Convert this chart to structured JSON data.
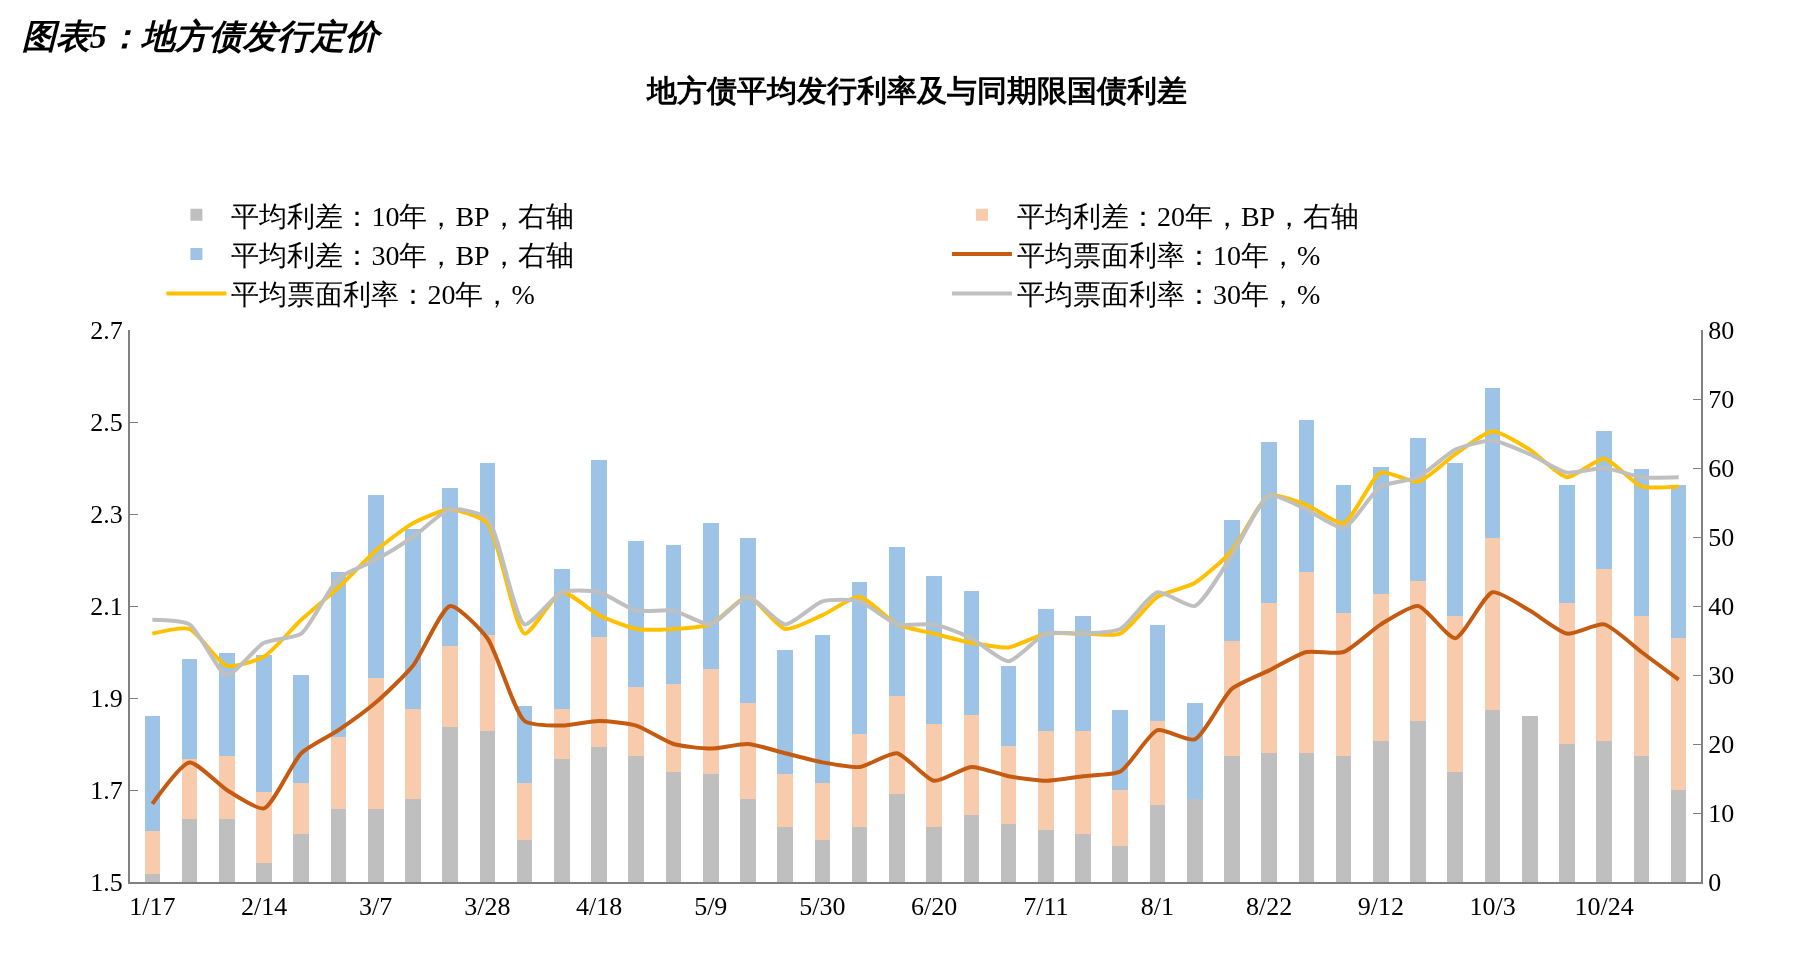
{
  "chart_data": {
    "type": "bar",
    "title": "图表5：地方债发行定价",
    "subtitle": "地方债平均发行利率及与同期限国债利差",
    "categories": [
      "1/17",
      null,
      null,
      "2/14",
      null,
      null,
      "3/7",
      null,
      null,
      "3/28",
      null,
      null,
      "4/18",
      null,
      null,
      "5/9",
      null,
      null,
      "5/30",
      null,
      null,
      "6/20",
      null,
      null,
      "7/11",
      null,
      null,
      "8/1",
      null,
      null,
      "8/22",
      null,
      null,
      "9/12",
      null,
      null,
      "10/3",
      null,
      null,
      "10/24",
      null,
      null
    ],
    "series": [
      {
        "name": "平均利差：10年，BP，右轴",
        "axis": "y2",
        "color": "#bfbfbf",
        "values": [
          1.1,
          9.2,
          9.2,
          2.8,
          7,
          10.6,
          10.6,
          12,
          22.4,
          21.9,
          6.1,
          17.8,
          19.6,
          18.3,
          16,
          15.6,
          12,
          8,
          6.1,
          8,
          12.8,
          8,
          9.7,
          8.4,
          7.5,
          7,
          5.2,
          11.1,
          12,
          18.3,
          18.7,
          18.7,
          18.3,
          20.5,
          23.3,
          16,
          25,
          24.1,
          20,
          20.5,
          18.3,
          13.3
        ]
      },
      {
        "name": "平均利差：20年，BP，右轴",
        "axis": "y2",
        "color": "#f8cbad",
        "values": [
          6.3,
          8.6,
          9.1,
          10.2,
          7.3,
          10.4,
          19,
          13.1,
          11.8,
          13.9,
          8.2,
          7.3,
          15.9,
          9.9,
          12.7,
          15.3,
          14,
          7.6,
          8.2,
          13.4,
          14.1,
          14.9,
          14.5,
          11.3,
          14.4,
          14.9,
          8.1,
          12.2,
          null,
          16.6,
          21.7,
          26.2,
          20.7,
          21.3,
          20.3,
          22.6,
          24.8,
          null,
          20.4,
          24.8,
          20.3,
          22.1
        ]
      },
      {
        "name": "平均利差：30年，BP，右轴",
        "axis": "y2",
        "color": "#9dc3e6",
        "values": [
          16.7,
          14.5,
          14.9,
          19.9,
          15.7,
          23.9,
          26.5,
          26,
          22.9,
          24.9,
          11.2,
          20.2,
          25.6,
          21.2,
          20.2,
          21.2,
          23.8,
          18,
          21.5,
          22.1,
          21.6,
          21.5,
          18,
          11.6,
          17.6,
          16.7,
          11.7,
          13.9,
          13.9,
          17.6,
          23.4,
          22.1,
          18.5,
          18.4,
          20.7,
          22.1,
          21.8,
          null,
          17.1,
          20,
          21.2,
          22.1
        ]
      },
      {
        "name": "平均票面利率：10年，%",
        "type": "line",
        "color": "#c55a11",
        "values": [
          1.67,
          1.76,
          1.7,
          1.66,
          1.78,
          1.83,
          1.89,
          1.97,
          2.1,
          2.03,
          1.85,
          1.84,
          1.85,
          1.84,
          1.8,
          1.79,
          1.8,
          1.78,
          1.76,
          1.75,
          1.78,
          1.72,
          1.75,
          1.73,
          1.72,
          1.73,
          1.74,
          1.83,
          1.81,
          1.92,
          1.96,
          2.0,
          2.0,
          2.06,
          2.1,
          2.03,
          2.13,
          2.09,
          2.04,
          2.06,
          2.0,
          1.94
        ]
      },
      {
        "name": "平均票面利率：20年，%",
        "type": "line",
        "color": "#ffc000",
        "values": [
          2.04,
          2.05,
          1.97,
          1.99,
          2.07,
          2.14,
          2.22,
          2.28,
          2.31,
          2.28,
          2.04,
          2.13,
          2.08,
          2.05,
          2.05,
          2.06,
          2.12,
          2.05,
          2.08,
          2.12,
          2.06,
          2.04,
          2.02,
          2.01,
          2.04,
          2.04,
          2.04,
          2.12,
          2.15,
          2.22,
          2.34,
          2.32,
          2.28,
          2.39,
          2.37,
          2.43,
          2.48,
          2.44,
          2.38,
          2.42,
          2.36,
          2.36
        ]
      },
      {
        "name": "平均票面利率：30年，%",
        "type": "line",
        "color": "#bfbfbf",
        "values": [
          2.07,
          2.06,
          1.95,
          2.02,
          2.04,
          2.16,
          2.2,
          2.25,
          2.31,
          2.29,
          2.06,
          2.13,
          2.13,
          2.09,
          2.09,
          2.06,
          2.12,
          2.06,
          2.11,
          2.11,
          2.06,
          2.06,
          2.03,
          1.98,
          2.04,
          2.04,
          2.05,
          2.13,
          2.1,
          2.21,
          2.34,
          2.31,
          2.27,
          2.36,
          2.38,
          2.44,
          2.46,
          2.43,
          2.39,
          2.4,
          2.38,
          2.38
        ]
      }
    ],
    "ylim": [
      1.5,
      2.7
    ],
    "yticks": [
      1.5,
      1.7,
      1.9,
      2.1,
      2.3,
      2.5,
      2.7
    ],
    "y2lim": [
      0,
      80
    ],
    "y2ticks": [
      0,
      10,
      20,
      30,
      40,
      50,
      60,
      70,
      80
    ],
    "stacked": true,
    "grid": false,
    "legend": "top"
  }
}
